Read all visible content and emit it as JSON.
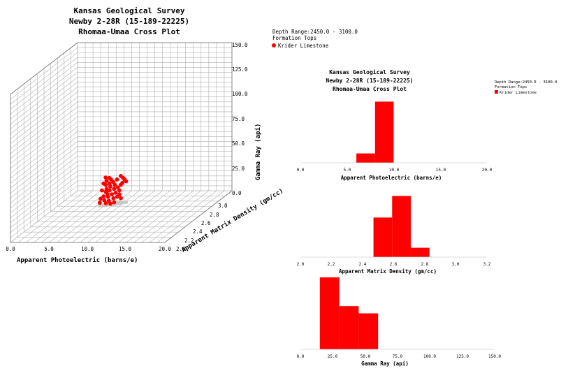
{
  "chart_data": [
    {
      "type": "scatter",
      "title": [
        "Kansas Geological Survey",
        "Newby 2-28R (15-189-22225)",
        "Rhomaa-Umaa Cross Plot"
      ],
      "xlabel": "Apparent Photoelectric (barns/e)",
      "ylabel": "Gamma Ray (api)",
      "zlabel": "Apparent Matrix Density (gm/cc)",
      "x_range": [
        0,
        20
      ],
      "x_ticks": [
        "0.0",
        "5.0",
        "10.0",
        "15.0",
        "20.0"
      ],
      "y_range": [
        0,
        150
      ],
      "y_ticks": [
        "0.0",
        "25.0",
        "50.0",
        "75.0",
        "100.0",
        "125.0",
        "150.0"
      ],
      "z_range": [
        2.0,
        3.0
      ],
      "z_ticks": [
        "2.0",
        "2.2",
        "2.4",
        "2.6",
        "2.8",
        "3.0"
      ],
      "grid": true,
      "legend": {
        "lines": [
          "Depth Range:2450.0 - 3100.0",
          "Formation Tops"
        ],
        "entries": [
          {
            "name": "Krider Limestone",
            "color": "#ff0000",
            "marker": "circle"
          }
        ]
      },
      "projection_color": "#c8c8c8",
      "series": [
        {
          "name": "Krider Limestone",
          "color": "#ff0000",
          "points": [
            [
              5.9,
              2.74,
              27
            ],
            [
              6.3,
              2.75,
              26
            ],
            [
              6.1,
              2.73,
              24
            ],
            [
              6.6,
              2.74,
              25
            ],
            [
              5.8,
              2.72,
              22
            ],
            [
              6.0,
              2.73,
              20
            ],
            [
              6.4,
              2.74,
              21
            ],
            [
              6.8,
              2.75,
              22
            ],
            [
              7.2,
              2.76,
              24
            ],
            [
              7.0,
              2.75,
              19
            ],
            [
              6.5,
              2.74,
              18
            ],
            [
              6.1,
              2.73,
              16
            ],
            [
              5.6,
              2.72,
              15
            ],
            [
              6.0,
              2.73,
              13
            ],
            [
              6.4,
              2.74,
              14
            ],
            [
              6.9,
              2.75,
              15
            ],
            [
              7.3,
              2.76,
              16
            ],
            [
              7.6,
              2.77,
              18
            ],
            [
              7.8,
              2.77,
              20
            ],
            [
              7.5,
              2.76,
              13
            ],
            [
              6.2,
              2.73,
              11
            ],
            [
              5.8,
              2.72,
              9
            ],
            [
              6.3,
              2.73,
              8
            ],
            [
              6.7,
              2.74,
              10
            ],
            [
              7.1,
              2.75,
              11
            ],
            [
              7.5,
              2.76,
              9
            ],
            [
              5.5,
              2.71,
              7
            ],
            [
              5.9,
              2.72,
              5
            ],
            [
              6.4,
              2.73,
              4
            ],
            [
              6.9,
              2.74,
              6
            ],
            [
              7.3,
              2.75,
              7
            ],
            [
              7.7,
              2.76,
              5
            ],
            [
              6.1,
              2.72,
              2
            ],
            [
              6.6,
              2.73,
              1
            ],
            [
              7.0,
              2.74,
              2
            ],
            [
              5.4,
              2.71,
              3
            ],
            [
              7.9,
              2.77,
              25
            ],
            [
              8.0,
              2.78,
              23
            ],
            [
              7.6,
              2.77,
              27
            ],
            [
              8.2,
              2.78,
              21
            ]
          ]
        }
      ]
    },
    {
      "type": "bar",
      "title": [
        "Kansas Geological Survey",
        "Newby 2-28R (15-189-22225)",
        "Rhomaa-Umaa Cross Plot"
      ],
      "legend": {
        "lines": [
          "Depth Range:2450.0 - 3100.0",
          "Formation Tops"
        ],
        "entries": [
          {
            "name": "Krider Limestone",
            "color": "#ff0000",
            "marker": "square"
          }
        ]
      },
      "histograms": [
        {
          "name": "photoelectric",
          "xlabel": "Apparent Photoelectric (barns/e)",
          "x_range": [
            0,
            20
          ],
          "x_ticks": [
            "0.0",
            "5.0",
            "10.0",
            "15.0",
            "20.0"
          ],
          "bins": [
            {
              "start": 6.0,
              "end": 8.0,
              "value": 13
            },
            {
              "start": 8.0,
              "end": 10.0,
              "value": 85
            }
          ]
        },
        {
          "name": "matrix-density",
          "xlabel": "Apparent Matrix Density (gm/cc)",
          "x_range": [
            2.0,
            3.2
          ],
          "x_ticks": [
            "2.0",
            "2.2",
            "2.4",
            "2.6",
            "2.8",
            "3.0",
            "3.2"
          ],
          "bins": [
            {
              "start": 2.47,
              "end": 2.59,
              "value": 55
            },
            {
              "start": 2.59,
              "end": 2.71,
              "value": 85
            },
            {
              "start": 2.71,
              "end": 2.83,
              "value": 13
            }
          ]
        },
        {
          "name": "gamma-ray",
          "xlabel": "Gamma Ray (api)",
          "x_range": [
            0,
            150
          ],
          "x_ticks": [
            "0.0",
            "25.0",
            "50.0",
            "75.0",
            "100.0",
            "125.0",
            "150.0"
          ],
          "bins": [
            {
              "start": 15,
              "end": 30,
              "value": 100
            },
            {
              "start": 30,
              "end": 45,
              "value": 60
            },
            {
              "start": 45,
              "end": 60,
              "value": 50
            }
          ]
        }
      ]
    }
  ]
}
